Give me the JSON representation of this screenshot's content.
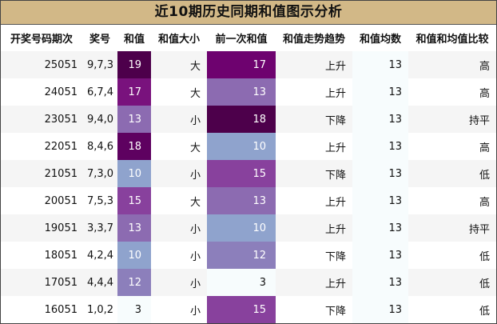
{
  "title": "近10期历史同期和值图示分析",
  "columns": [
    "开奖号码期次",
    "奖号",
    "和值",
    "和值大小",
    "前一次和值",
    "和值走势趋势",
    "和值均数",
    "和值和均值比较"
  ],
  "rows": [
    {
      "issue": "25051",
      "numbers": "9,7,3",
      "sum": "19",
      "sum_bg": "#4d004b",
      "sum_fg": "#ffffff",
      "size": "大",
      "prev_sum": "17",
      "prev_bg": "#6e026f",
      "prev_fg": "#ffffff",
      "trend": "上升",
      "avg": "13",
      "compare": "高"
    },
    {
      "issue": "24051",
      "numbers": "6,7,4",
      "sum": "17",
      "sum_bg": "#79127d",
      "sum_fg": "#ffffff",
      "size": "大",
      "prev_sum": "13",
      "prev_bg": "#8c6bb1",
      "prev_fg": "#ffffff",
      "trend": "上升",
      "avg": "13",
      "compare": "高"
    },
    {
      "issue": "23051",
      "numbers": "9,4,0",
      "sum": "13",
      "sum_bg": "#8c6bb1",
      "sum_fg": "#ffffff",
      "size": "小",
      "prev_sum": "18",
      "prev_bg": "#4d004b",
      "prev_fg": "#ffffff",
      "trend": "下降",
      "avg": "13",
      "compare": "持平"
    },
    {
      "issue": "22051",
      "numbers": "8,4,6",
      "sum": "18",
      "sum_bg": "#5e0160",
      "sum_fg": "#ffffff",
      "size": "大",
      "prev_sum": "10",
      "prev_bg": "#8fa3cd",
      "prev_fg": "#ffffff",
      "trend": "上升",
      "avg": "13",
      "compare": "高"
    },
    {
      "issue": "21051",
      "numbers": "7,3,0",
      "sum": "10",
      "sum_bg": "#8fa3cd",
      "sum_fg": "#ffffff",
      "size": "小",
      "prev_sum": "15",
      "prev_bg": "#88419d",
      "prev_fg": "#ffffff",
      "trend": "下降",
      "avg": "13",
      "compare": "低"
    },
    {
      "issue": "20051",
      "numbers": "7,5,3",
      "sum": "15",
      "sum_bg": "#88419d",
      "sum_fg": "#ffffff",
      "size": "大",
      "prev_sum": "13",
      "prev_bg": "#8c6bb1",
      "prev_fg": "#ffffff",
      "trend": "上升",
      "avg": "13",
      "compare": "高"
    },
    {
      "issue": "19051",
      "numbers": "3,3,7",
      "sum": "13",
      "sum_bg": "#8c6bb1",
      "sum_fg": "#ffffff",
      "size": "小",
      "prev_sum": "10",
      "prev_bg": "#8fa3cd",
      "prev_fg": "#ffffff",
      "trend": "上升",
      "avg": "13",
      "compare": "持平"
    },
    {
      "issue": "18051",
      "numbers": "4,2,4",
      "sum": "10",
      "sum_bg": "#8fa3cd",
      "sum_fg": "#ffffff",
      "size": "小",
      "prev_sum": "12",
      "prev_bg": "#8c7fbb",
      "prev_fg": "#ffffff",
      "trend": "下降",
      "avg": "13",
      "compare": "低"
    },
    {
      "issue": "17051",
      "numbers": "4,4,4",
      "sum": "12",
      "sum_bg": "#8c7fbb",
      "sum_fg": "#ffffff",
      "size": "小",
      "prev_sum": "3",
      "prev_bg": "#f7fcfd",
      "prev_fg": "#111111",
      "trend": "上升",
      "avg": "13",
      "compare": "低"
    },
    {
      "issue": "16051",
      "numbers": "1,0,2",
      "sum": "3",
      "sum_bg": "#f7fcfd",
      "sum_fg": "#111111",
      "size": "小",
      "prev_sum": "15",
      "prev_bg": "#88419d",
      "prev_fg": "#ffffff",
      "trend": "下降",
      "avg": "13",
      "compare": "低"
    }
  ]
}
